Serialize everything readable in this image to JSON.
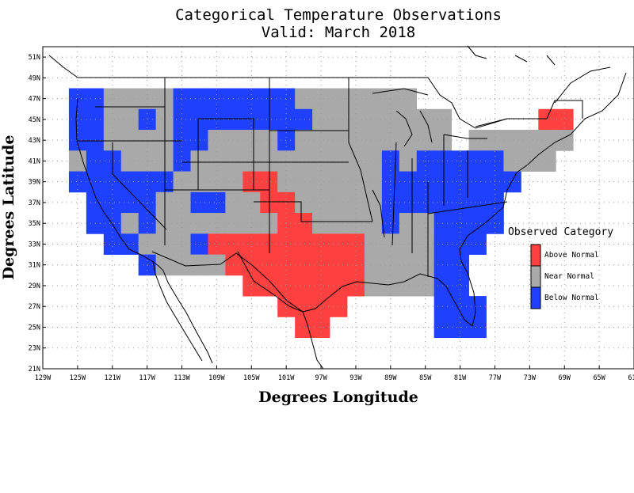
{
  "title": {
    "line1": "Categorical Temperature Observations",
    "line2": "Valid: March 2018"
  },
  "axes": {
    "xlabel": "Degrees Longitude",
    "ylabel": "Degrees Latitude",
    "x_ticks": [
      "129W",
      "125W",
      "121W",
      "117W",
      "113W",
      "109W",
      "105W",
      "101W",
      "97W",
      "93W",
      "89W",
      "85W",
      "81W",
      "77W",
      "73W",
      "69W",
      "65W",
      "61W"
    ],
    "y_ticks": [
      "21N",
      "23N",
      "25N",
      "27N",
      "29N",
      "31N",
      "33N",
      "35N",
      "37N",
      "39N",
      "41N",
      "43N",
      "45N",
      "47N",
      "49N",
      "51N"
    ]
  },
  "legend": {
    "title": "Observed Category",
    "items": [
      {
        "key": "above",
        "label": "Above Normal",
        "color": "#ff4040"
      },
      {
        "key": "near",
        "label": "Near Normal",
        "color": "#a9a9a9"
      },
      {
        "key": "below",
        "label": "Below Normal",
        "color": "#2040ff"
      }
    ]
  },
  "colors": {
    "above": "#ff4040",
    "near": "#a9a9a9",
    "below": "#2040ff",
    "grid": "#9a9a9a"
  },
  "chart_data": {
    "type": "heatmap",
    "x_range_lon": [
      -129,
      -61
    ],
    "y_range_lat": [
      21,
      52
    ],
    "cell_size_deg": 2,
    "cells": [
      [
        "B",
        -125,
        47
      ],
      [
        "B",
        -123,
        47
      ],
      [
        "N",
        -121,
        47
      ],
      [
        "N",
        -119,
        47
      ],
      [
        "N",
        -117,
        47
      ],
      [
        "N",
        -115,
        47
      ],
      [
        "B",
        -113,
        47
      ],
      [
        "B",
        -111,
        47
      ],
      [
        "B",
        -109,
        47
      ],
      [
        "B",
        -107,
        47
      ],
      [
        "B",
        -105,
        47
      ],
      [
        "B",
        -103,
        47
      ],
      [
        "B",
        -101,
        47
      ],
      [
        "N",
        -99,
        47
      ],
      [
        "N",
        -97,
        47
      ],
      [
        "N",
        -95,
        47
      ],
      [
        "N",
        -93,
        47
      ],
      [
        "N",
        -91,
        47
      ],
      [
        "N",
        -89,
        47
      ],
      [
        "N",
        -87,
        47
      ],
      [
        "B",
        -125,
        45
      ],
      [
        "B",
        -123,
        45
      ],
      [
        "N",
        -121,
        45
      ],
      [
        "N",
        -119,
        45
      ],
      [
        "B",
        -117,
        45
      ],
      [
        "N",
        -115,
        45
      ],
      [
        "B",
        -113,
        45
      ],
      [
        "B",
        -111,
        45
      ],
      [
        "B",
        -109,
        45
      ],
      [
        "B",
        -107,
        45
      ],
      [
        "B",
        -105,
        45
      ],
      [
        "B",
        -103,
        45
      ],
      [
        "B",
        -101,
        45
      ],
      [
        "B",
        -99,
        45
      ],
      [
        "N",
        -97,
        45
      ],
      [
        "N",
        -95,
        45
      ],
      [
        "N",
        -93,
        45
      ],
      [
        "N",
        -91,
        45
      ],
      [
        "N",
        -89,
        45
      ],
      [
        "N",
        -87,
        45
      ],
      [
        "N",
        -85,
        45
      ],
      [
        "N",
        -83,
        45
      ],
      [
        "A",
        -71,
        45
      ],
      [
        "A",
        -69,
        45
      ],
      [
        "B",
        -125,
        43
      ],
      [
        "B",
        -123,
        43
      ],
      [
        "N",
        -121,
        43
      ],
      [
        "N",
        -119,
        43
      ],
      [
        "N",
        -117,
        43
      ],
      [
        "N",
        -115,
        43
      ],
      [
        "B",
        -113,
        43
      ],
      [
        "B",
        -111,
        43
      ],
      [
        "N",
        -109,
        43
      ],
      [
        "N",
        -107,
        43
      ],
      [
        "N",
        -105,
        43
      ],
      [
        "N",
        -103,
        43
      ],
      [
        "B",
        -101,
        43
      ],
      [
        "N",
        -99,
        43
      ],
      [
        "N",
        -97,
        43
      ],
      [
        "N",
        -95,
        43
      ],
      [
        "N",
        -93,
        43
      ],
      [
        "N",
        -91,
        43
      ],
      [
        "N",
        -89,
        43
      ],
      [
        "N",
        -87,
        43
      ],
      [
        "N",
        -85,
        43
      ],
      [
        "N",
        -83,
        43
      ],
      [
        "N",
        -79,
        43
      ],
      [
        "N",
        -77,
        43
      ],
      [
        "N",
        -75,
        43
      ],
      [
        "N",
        -73,
        43
      ],
      [
        "N",
        -71,
        43
      ],
      [
        "N",
        -69,
        43
      ],
      [
        "N",
        -125,
        41
      ],
      [
        "B",
        -123,
        41
      ],
      [
        "B",
        -121,
        41
      ],
      [
        "N",
        -119,
        41
      ],
      [
        "N",
        -117,
        41
      ],
      [
        "N",
        -115,
        41
      ],
      [
        "B",
        -113,
        41
      ],
      [
        "N",
        -111,
        41
      ],
      [
        "N",
        -109,
        41
      ],
      [
        "N",
        -107,
        41
      ],
      [
        "N",
        -105,
        41
      ],
      [
        "N",
        -103,
        41
      ],
      [
        "N",
        -101,
        41
      ],
      [
        "N",
        -99,
        41
      ],
      [
        "N",
        -97,
        41
      ],
      [
        "N",
        -95,
        41
      ],
      [
        "N",
        -93,
        41
      ],
      [
        "N",
        -91,
        41
      ],
      [
        "B",
        -89,
        41
      ],
      [
        "N",
        -87,
        41
      ],
      [
        "B",
        -85,
        41
      ],
      [
        "B",
        -83,
        41
      ],
      [
        "B",
        -81,
        41
      ],
      [
        "B",
        -79,
        41
      ],
      [
        "B",
        -77,
        41
      ],
      [
        "N",
        -75,
        41
      ],
      [
        "N",
        -73,
        41
      ],
      [
        "N",
        -71,
        41
      ],
      [
        "B",
        -125,
        39
      ],
      [
        "B",
        -123,
        39
      ],
      [
        "B",
        -121,
        39
      ],
      [
        "B",
        -119,
        39
      ],
      [
        "B",
        -117,
        39
      ],
      [
        "B",
        -115,
        39
      ],
      [
        "N",
        -113,
        39
      ],
      [
        "N",
        -111,
        39
      ],
      [
        "N",
        -109,
        39
      ],
      [
        "N",
        -107,
        39
      ],
      [
        "A",
        -105,
        39
      ],
      [
        "A",
        -103,
        39
      ],
      [
        "N",
        -101,
        39
      ],
      [
        "N",
        -99,
        39
      ],
      [
        "N",
        -97,
        39
      ],
      [
        "N",
        -95,
        39
      ],
      [
        "N",
        -93,
        39
      ],
      [
        "N",
        -91,
        39
      ],
      [
        "B",
        -89,
        39
      ],
      [
        "B",
        -87,
        39
      ],
      [
        "B",
        -85,
        39
      ],
      [
        "B",
        -83,
        39
      ],
      [
        "B",
        -81,
        39
      ],
      [
        "B",
        -79,
        39
      ],
      [
        "B",
        -77,
        39
      ],
      [
        "B",
        -75,
        39
      ],
      [
        "B",
        -123,
        37
      ],
      [
        "B",
        -121,
        37
      ],
      [
        "B",
        -119,
        37
      ],
      [
        "B",
        -117,
        37
      ],
      [
        "N",
        -115,
        37
      ],
      [
        "N",
        -113,
        37
      ],
      [
        "B",
        -111,
        37
      ],
      [
        "B",
        -109,
        37
      ],
      [
        "N",
        -107,
        37
      ],
      [
        "N",
        -105,
        37
      ],
      [
        "A",
        -103,
        37
      ],
      [
        "A",
        -101,
        37
      ],
      [
        "N",
        -99,
        37
      ],
      [
        "N",
        -97,
        37
      ],
      [
        "N",
        -95,
        37
      ],
      [
        "N",
        -93,
        37
      ],
      [
        "N",
        -91,
        37
      ],
      [
        "B",
        -89,
        37
      ],
      [
        "B",
        -87,
        37
      ],
      [
        "B",
        -85,
        37
      ],
      [
        "B",
        -83,
        37
      ],
      [
        "B",
        -81,
        37
      ],
      [
        "B",
        -79,
        37
      ],
      [
        "B",
        -77,
        37
      ],
      [
        "B",
        -123,
        35
      ],
      [
        "B",
        -121,
        35
      ],
      [
        "N",
        -119,
        35
      ],
      [
        "B",
        -117,
        35
      ],
      [
        "N",
        -115,
        35
      ],
      [
        "N",
        -113,
        35
      ],
      [
        "N",
        -111,
        35
      ],
      [
        "N",
        -109,
        35
      ],
      [
        "N",
        -107,
        35
      ],
      [
        "N",
        -105,
        35
      ],
      [
        "N",
        -103,
        35
      ],
      [
        "A",
        -101,
        35
      ],
      [
        "A",
        -99,
        35
      ],
      [
        "N",
        -97,
        35
      ],
      [
        "N",
        -95,
        35
      ],
      [
        "N",
        -93,
        35
      ],
      [
        "N",
        -91,
        35
      ],
      [
        "B",
        -89,
        35
      ],
      [
        "N",
        -87,
        35
      ],
      [
        "N",
        -85,
        35
      ],
      [
        "B",
        -83,
        35
      ],
      [
        "B",
        -81,
        35
      ],
      [
        "B",
        -79,
        35
      ],
      [
        "B",
        -77,
        35
      ],
      [
        "B",
        -121,
        33
      ],
      [
        "B",
        -119,
        33
      ],
      [
        "N",
        -117,
        33
      ],
      [
        "N",
        -115,
        33
      ],
      [
        "N",
        -113,
        33
      ],
      [
        "B",
        -111,
        33
      ],
      [
        "A",
        -109,
        33
      ],
      [
        "A",
        -107,
        33
      ],
      [
        "A",
        -105,
        33
      ],
      [
        "A",
        -103,
        33
      ],
      [
        "A",
        -101,
        33
      ],
      [
        "A",
        -99,
        33
      ],
      [
        "A",
        -97,
        33
      ],
      [
        "A",
        -95,
        33
      ],
      [
        "A",
        -93,
        33
      ],
      [
        "N",
        -91,
        33
      ],
      [
        "N",
        -89,
        33
      ],
      [
        "N",
        -87,
        33
      ],
      [
        "N",
        -85,
        33
      ],
      [
        "B",
        -83,
        33
      ],
      [
        "B",
        -81,
        33
      ],
      [
        "B",
        -79,
        33
      ],
      [
        "B",
        -117,
        31
      ],
      [
        "N",
        -115,
        31
      ],
      [
        "N",
        -113,
        31
      ],
      [
        "N",
        -111,
        31
      ],
      [
        "N",
        -109,
        31
      ],
      [
        "A",
        -107,
        31
      ],
      [
        "A",
        -105,
        31
      ],
      [
        "A",
        -103,
        31
      ],
      [
        "A",
        -101,
        31
      ],
      [
        "A",
        -99,
        31
      ],
      [
        "A",
        -97,
        31
      ],
      [
        "A",
        -95,
        31
      ],
      [
        "A",
        -93,
        31
      ],
      [
        "N",
        -91,
        31
      ],
      [
        "N",
        -89,
        31
      ],
      [
        "N",
        -87,
        31
      ],
      [
        "N",
        -85,
        31
      ],
      [
        "B",
        -83,
        31
      ],
      [
        "B",
        -81,
        31
      ],
      [
        "A",
        -105,
        29
      ],
      [
        "A",
        -103,
        29
      ],
      [
        "A",
        -101,
        29
      ],
      [
        "A",
        -99,
        29
      ],
      [
        "A",
        -97,
        29
      ],
      [
        "A",
        -95,
        29
      ],
      [
        "A",
        -93,
        29
      ],
      [
        "N",
        -91,
        29
      ],
      [
        "N",
        -89,
        29
      ],
      [
        "N",
        -87,
        29
      ],
      [
        "N",
        -85,
        29
      ],
      [
        "B",
        -83,
        29
      ],
      [
        "B",
        -81,
        29
      ],
      [
        "A",
        -101,
        27
      ],
      [
        "A",
        -99,
        27
      ],
      [
        "A",
        -97,
        27
      ],
      [
        "A",
        -95,
        27
      ],
      [
        "B",
        -83,
        27
      ],
      [
        "B",
        -81,
        27
      ],
      [
        "B",
        -79,
        27
      ],
      [
        "A",
        -99,
        25
      ],
      [
        "A",
        -97,
        25
      ],
      [
        "B",
        -83,
        25
      ],
      [
        "B",
        -81,
        25
      ],
      [
        "B",
        -79,
        25
      ]
    ]
  }
}
